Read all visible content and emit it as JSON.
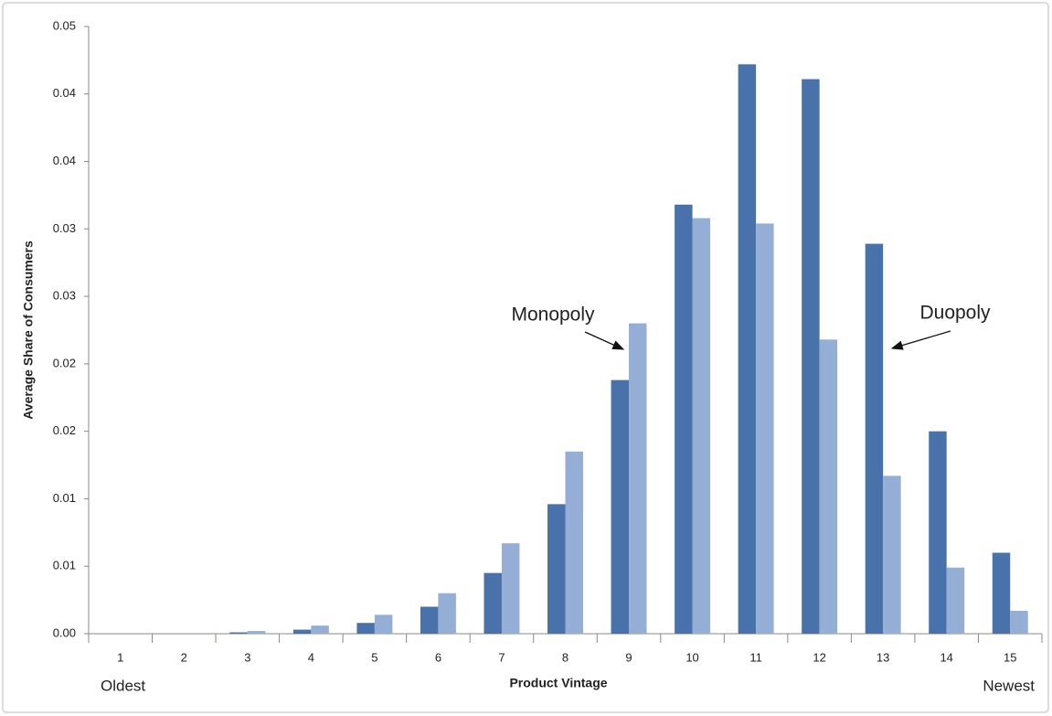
{
  "chart_data": {
    "type": "bar",
    "x_label": "Product Vintage",
    "y_label": "Average Share of Consumers",
    "x_end_labels": {
      "left": "Oldest",
      "right": "Newest"
    },
    "categories": [
      "1",
      "2",
      "3",
      "4",
      "5",
      "6",
      "7",
      "8",
      "9",
      "10",
      "11",
      "12",
      "13",
      "14",
      "15"
    ],
    "series": [
      {
        "name": "Duopoly",
        "color": "#4a72aa",
        "values": [
          0,
          0,
          0.0001,
          0.0003,
          0.0008,
          0.002,
          0.0045,
          0.0096,
          0.0188,
          0.0318,
          0.0422,
          0.0411,
          0.0289,
          0.015,
          0.006
        ]
      },
      {
        "name": "Monopoly",
        "color": "#95aed5",
        "values": [
          0,
          0,
          0.0002,
          0.0006,
          0.0014,
          0.003,
          0.0067,
          0.0135,
          0.023,
          0.0308,
          0.0304,
          0.0218,
          0.0117,
          0.0049,
          0.0017
        ]
      }
    ],
    "ylim": [
      0,
      0.045
    ],
    "yticks": [
      {
        "value": 0,
        "label": "0.00"
      },
      {
        "value": 0.005,
        "label": "0.01"
      },
      {
        "value": 0.01,
        "label": "0.01"
      },
      {
        "value": 0.015,
        "label": "0.02"
      },
      {
        "value": 0.02,
        "label": "0.02"
      },
      {
        "value": 0.025,
        "label": "0.03"
      },
      {
        "value": 0.03,
        "label": "0.03"
      },
      {
        "value": 0.035,
        "label": "0.04"
      },
      {
        "value": 0.04,
        "label": "0.04"
      },
      {
        "value": 0.045,
        "label": "0.05"
      }
    ],
    "grid": false
  }
}
